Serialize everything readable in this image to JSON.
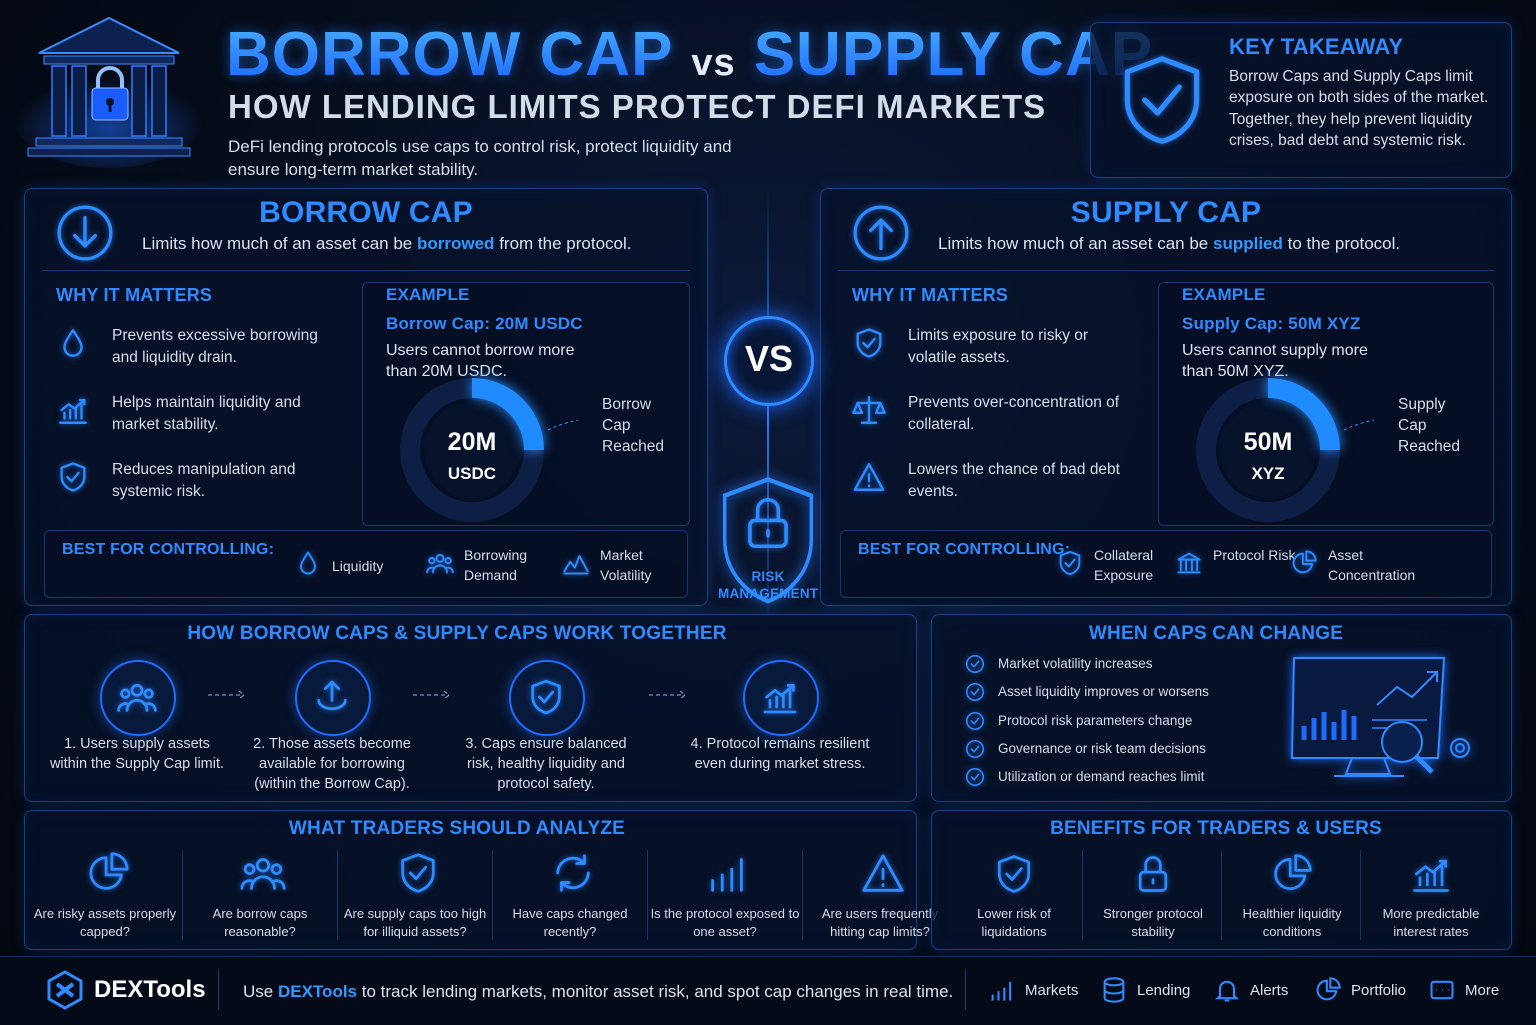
{
  "header": {
    "title_left": "BORROW CAP",
    "title_mid": "vs",
    "title_right": "SUPPLY CAP",
    "subtitle": "HOW LENDING LIMITS PROTECT DEFI MARKETS",
    "description": "DeFi lending protocols use caps to control risk, protect liquidity and ensure long-term market stability."
  },
  "key_takeaway": {
    "title": "KEY TAKEAWAY",
    "text": "Borrow Caps and Supply Caps limit exposure on both sides of the market. Together, they help prevent liquidity crises, bad debt and systemic risk."
  },
  "panels": [
    {
      "title": "BORROW CAP",
      "desc_before": "Limits how much of an asset can be",
      "desc_highlight": "borrowed",
      "desc_after": "from the protocol.",
      "why_title": "WHY IT MATTERS",
      "why_items": [
        "Prevents excessive borrowing and liquidity drain.",
        "Helps maintain liquidity and market stability.",
        "Reduces manipulation and systemic risk."
      ],
      "example_title": "EXAMPLE",
      "example_cap": "Borrow Cap: 20M USDC",
      "example_text": "Users cannot borrow more than 20M USDC.",
      "donut_value": "20M",
      "donut_unit": "USDC",
      "donut_note": "Borrow Cap Reached",
      "best_title": "BEST FOR CONTROLLING:",
      "best_items": [
        "Liquidity",
        "Borrowing Demand",
        "Market Volatility"
      ]
    },
    {
      "title": "SUPPLY CAP",
      "desc_before": "Limits how much of an asset can be",
      "desc_highlight": "supplied",
      "desc_after": "to the protocol.",
      "why_title": "WHY IT MATTERS",
      "why_items": [
        "Limits exposure to risky or volatile assets.",
        "Prevents over-concentration of collateral.",
        "Lowers the chance of bad debt events."
      ],
      "example_title": "EXAMPLE",
      "example_cap": "Supply Cap: 50M XYZ",
      "example_text": "Users cannot supply more than 50M XYZ.",
      "donut_value": "50M",
      "donut_unit": "XYZ",
      "donut_note": "Supply Cap Reached",
      "best_title": "BEST FOR CONTROLLING:",
      "best_items": [
        "Collateral Exposure",
        "Protocol Risk",
        "Asset Concentration"
      ]
    }
  ],
  "vs": {
    "label": "VS",
    "badge": "RISK MANAGEMENT"
  },
  "together": {
    "title": "HOW BORROW CAPS & SUPPLY CAPS WORK TOGETHER",
    "steps": [
      "1. Users supply assets within the Supply Cap limit.",
      "2. Those assets become available for borrowing (within the Borrow Cap).",
      "3. Caps ensure balanced risk, healthy liquidity and protocol safety.",
      "4. Protocol remains resilient even during market stress."
    ]
  },
  "caps_change": {
    "title": "WHEN CAPS CAN CHANGE",
    "items": [
      "Market volatility increases",
      "Asset liquidity improves or worsens",
      "Protocol risk parameters change",
      "Governance or risk team decisions",
      "Utilization or demand reaches limit"
    ]
  },
  "analyze": {
    "title": "WHAT TRADERS SHOULD ANALYZE",
    "items": [
      "Are risky assets properly capped?",
      "Are borrow caps reasonable?",
      "Are supply caps too high for illiquid assets?",
      "Have caps changed recently?",
      "Is the protocol exposed to one asset?",
      "Are users frequently hitting cap limits?"
    ]
  },
  "benefits": {
    "title": "BENEFITS FOR TRADERS & USERS",
    "items": [
      "Lower risk of liquidations",
      "Stronger protocol stability",
      "Healthier liquidity conditions",
      "More predictable interest rates"
    ]
  },
  "footer": {
    "brand": "DEXTools",
    "cta_before": "Use",
    "cta_highlight": "DEXTools",
    "cta_after": "to track lending markets, monitor asset risk, and spot cap changes in real time.",
    "nav": [
      "Markets",
      "Lending",
      "Alerts",
      "Portfolio",
      "More"
    ]
  }
}
